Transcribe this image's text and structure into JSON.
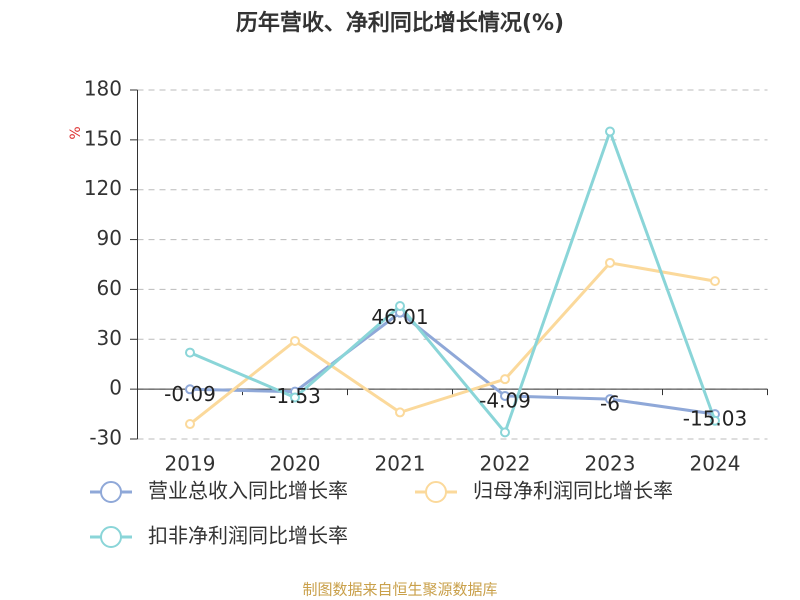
{
  "chart_data": {
    "type": "line",
    "title": "历年营收、净利同比增长情况(%)",
    "y_label": "%",
    "categories": [
      "2019",
      "2020",
      "2021",
      "2022",
      "2023",
      "2024"
    ],
    "series": [
      {
        "name": "营业总收入同比增长率",
        "color": "#8fa8d8",
        "values": [
          -0.09,
          -1.53,
          46.01,
          -4.09,
          -6,
          -15.03
        ],
        "show_labels": true
      },
      {
        "name": "归母净利润同比增长率",
        "color": "#fbd99b",
        "values": [
          -21,
          29,
          -14,
          6,
          76,
          65
        ],
        "show_labels": false
      },
      {
        "name": "扣非净利润同比增长率",
        "color": "#8ad5d8",
        "values": [
          22,
          -5,
          50,
          -26,
          155,
          -19
        ],
        "show_labels": false
      }
    ],
    "ylim": [
      -30,
      180
    ],
    "yticks": [
      -30,
      0,
      30,
      60,
      90,
      120,
      150,
      180
    ],
    "grid": true,
    "source": "制图数据来自恒生聚源数据库"
  }
}
